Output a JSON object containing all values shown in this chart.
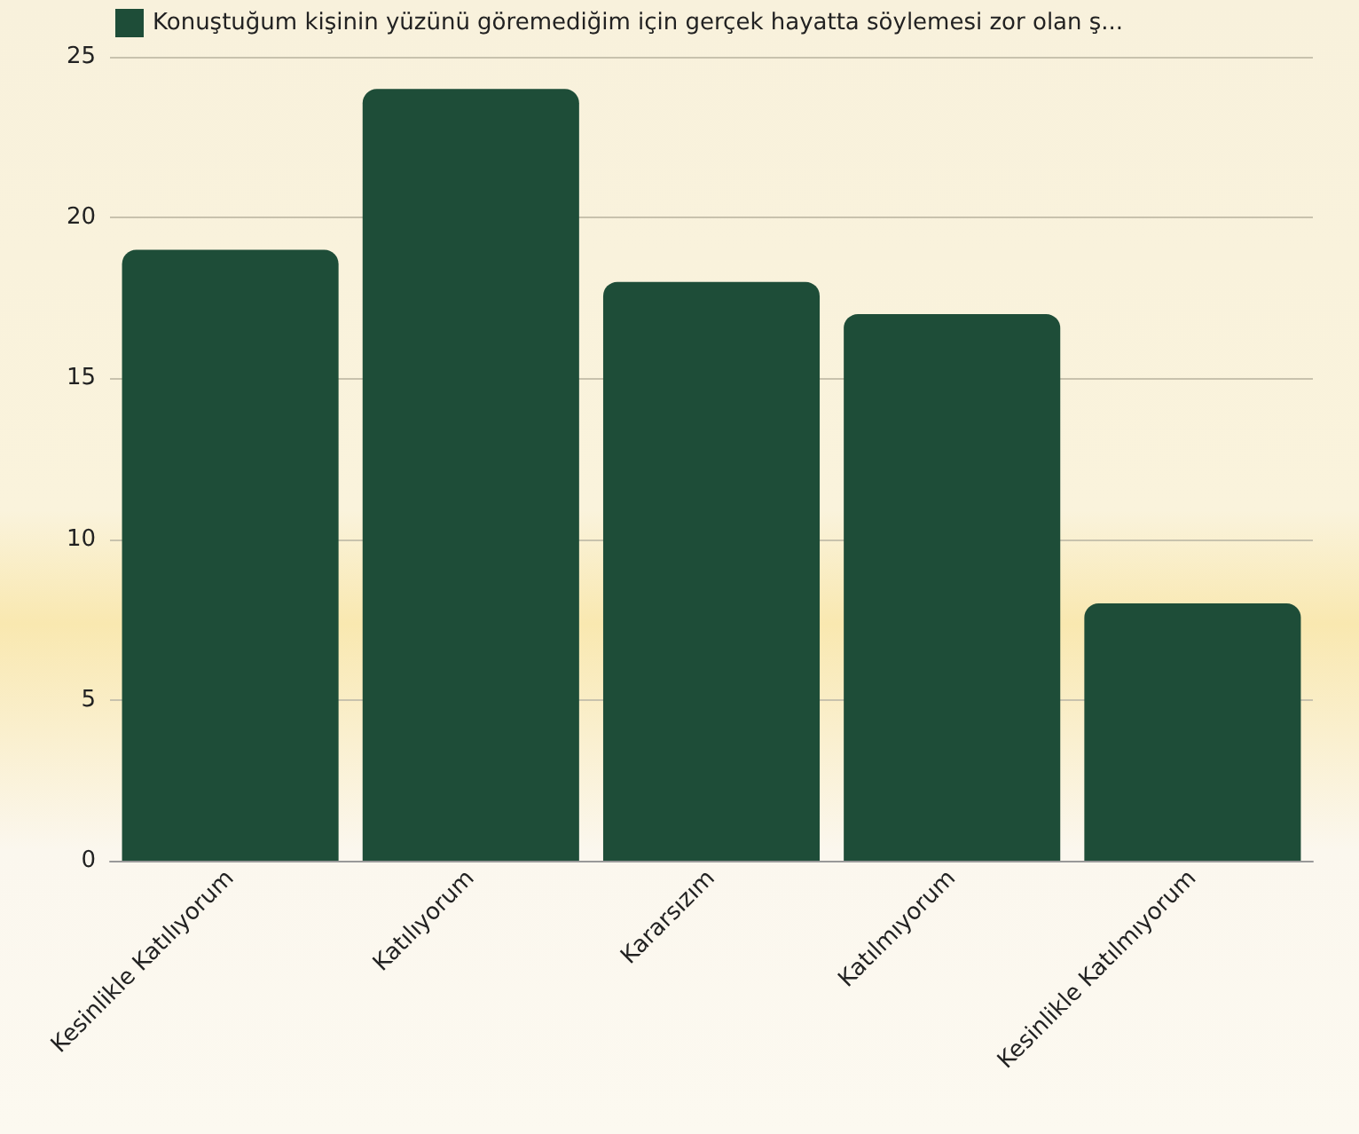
{
  "chart_data": {
    "type": "bar",
    "categories": [
      "Kesinlikle Katılıyorum",
      "Katılıyorum",
      "Kararsızım",
      "Katılmıyorum",
      "Kesinlikle Katılmıyorum"
    ],
    "series": [
      {
        "name": "Konuştuğum kişinin yüzünü göremediğim için gerçek hayatta söylemesi zor olan ş...",
        "color": "#1e4d38",
        "values": [
          19,
          24,
          18,
          17,
          8
        ]
      }
    ],
    "ylim": [
      0,
      25
    ],
    "yticks": [
      0,
      5,
      10,
      15,
      20,
      25
    ],
    "grid": "y",
    "legend": "top left"
  }
}
